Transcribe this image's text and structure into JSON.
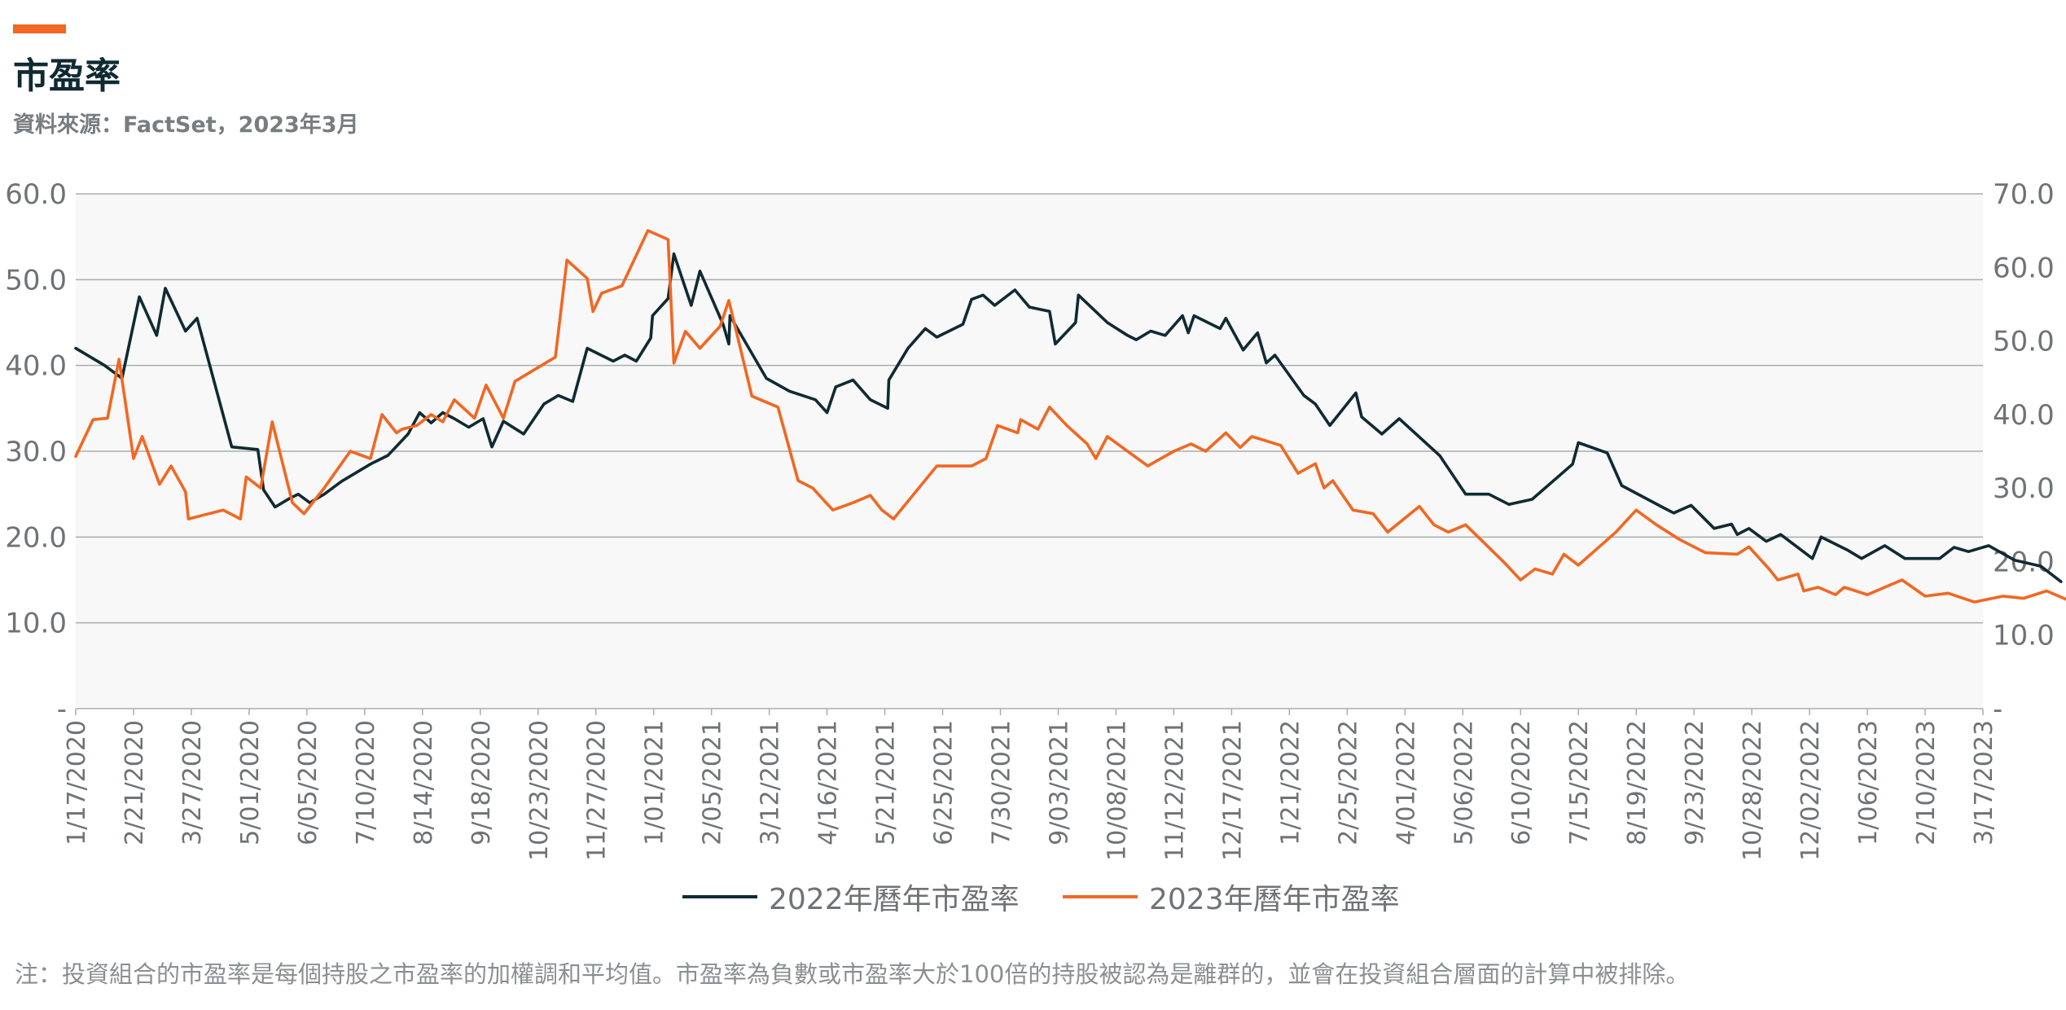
{
  "title": "市盈率",
  "source": "資料來源：FactSet，2023年3月",
  "note": "注：投資組合的市盈率是每個持股之市盈率的加權調和平均值。市盈率為負數或市盈率大於100倍的持股被認為是離群的，並會在投資組合層面的計算中被排除。",
  "colors": {
    "accent": "#f26722",
    "series_2022": "#0f2a33",
    "series_2023": "#f26722",
    "plot_bg": "#f7f8f7",
    "grid": "#a9adaf"
  },
  "chart_data": {
    "type": "line",
    "grid": true,
    "legend_position": "bottom-center",
    "left_axis": {
      "ylim": [
        0,
        60
      ],
      "ticks": [
        {
          "value": 0,
          "label": "-"
        },
        {
          "value": 10,
          "label": "10.0"
        },
        {
          "value": 20,
          "label": "20.0"
        },
        {
          "value": 30,
          "label": "30.0"
        },
        {
          "value": 40,
          "label": "40.0"
        },
        {
          "value": 50,
          "label": "50.0"
        },
        {
          "value": 60,
          "label": "60.0"
        }
      ]
    },
    "right_axis": {
      "ylim": [
        0,
        70
      ],
      "ticks": [
        {
          "value": 0,
          "label": "-"
        },
        {
          "value": 10,
          "label": "10.0"
        },
        {
          "value": 20,
          "label": "20.0"
        },
        {
          "value": 30,
          "label": "30.0"
        },
        {
          "value": 40,
          "label": "40.0"
        },
        {
          "value": 50,
          "label": "50.0"
        },
        {
          "value": 60,
          "label": "60.0"
        },
        {
          "value": 70,
          "label": "70.0"
        }
      ]
    },
    "x_tick_labels": [
      "1/17/2020",
      "2/21/2020",
      "3/27/2020",
      "5/01/2020",
      "6/05/2020",
      "7/10/2020",
      "8/14/2020",
      "9/18/2020",
      "10/23/2020",
      "11/27/2020",
      "1/01/2021",
      "2/05/2021",
      "3/12/2021",
      "4/16/2021",
      "5/21/2021",
      "6/25/2021",
      "7/30/2021",
      "9/03/2021",
      "10/08/2021",
      "11/12/2021",
      "12/17/2021",
      "1/21/2022",
      "2/25/2022",
      "4/01/2022",
      "5/06/2022",
      "6/10/2022",
      "7/15/2022",
      "8/19/2022",
      "9/23/2022",
      "10/28/2022",
      "12/02/2022",
      "1/06/2023",
      "2/10/2023",
      "3/17/2023"
    ],
    "series": [
      {
        "name": "2022年曆年市盈率",
        "axis": "left",
        "points": [
          [
            0,
            42
          ],
          [
            0.5,
            40
          ],
          [
            0.8,
            38.5
          ],
          [
            1.1,
            48
          ],
          [
            1.4,
            43.5
          ],
          [
            1.55,
            49
          ],
          [
            1.9,
            44
          ],
          [
            2.1,
            45.5
          ],
          [
            2.4,
            38
          ],
          [
            2.7,
            30.5
          ],
          [
            3.15,
            30.2
          ],
          [
            3.25,
            25.5
          ],
          [
            3.45,
            23.5
          ],
          [
            3.7,
            24.5
          ],
          [
            3.85,
            25
          ],
          [
            4.05,
            24
          ],
          [
            4.3,
            25
          ],
          [
            4.6,
            26.5
          ],
          [
            5.1,
            28.5
          ],
          [
            5.4,
            29.5
          ],
          [
            5.75,
            32
          ],
          [
            5.95,
            34.5
          ],
          [
            6.15,
            33.3
          ],
          [
            6.35,
            34.5
          ],
          [
            6.55,
            33.8
          ],
          [
            6.8,
            32.8
          ],
          [
            7.05,
            33.8
          ],
          [
            7.2,
            30.5
          ],
          [
            7.4,
            33.5
          ],
          [
            7.75,
            32
          ],
          [
            8.1,
            35.5
          ],
          [
            8.35,
            36.5
          ],
          [
            8.6,
            35.8
          ],
          [
            8.85,
            42
          ],
          [
            9.3,
            40.5
          ],
          [
            9.5,
            41.2
          ],
          [
            9.7,
            40.5
          ],
          [
            9.95,
            43.2
          ],
          [
            9.98,
            45.8
          ],
          [
            10.25,
            47.8
          ],
          [
            10.35,
            53
          ],
          [
            10.65,
            47
          ],
          [
            10.8,
            51
          ],
          [
            11.2,
            44.8
          ],
          [
            11.3,
            42.5
          ],
          [
            11.32,
            45.8
          ],
          [
            11.95,
            38.5
          ],
          [
            12.35,
            37
          ],
          [
            12.8,
            36
          ],
          [
            13.0,
            34.5
          ],
          [
            13.15,
            37.5
          ],
          [
            13.45,
            38.3
          ],
          [
            13.75,
            36
          ],
          [
            14.05,
            35
          ],
          [
            14.07,
            38.3
          ],
          [
            14.4,
            42
          ],
          [
            14.7,
            44.3
          ],
          [
            14.9,
            43.3
          ],
          [
            15.35,
            44.8
          ],
          [
            15.5,
            47.7
          ],
          [
            15.7,
            48.2
          ],
          [
            15.9,
            47
          ],
          [
            16.25,
            48.8
          ],
          [
            16.5,
            46.8
          ],
          [
            16.85,
            46.3
          ],
          [
            16.95,
            42.5
          ],
          [
            17.3,
            45
          ],
          [
            17.35,
            48.2
          ],
          [
            17.85,
            45
          ],
          [
            18.2,
            43.5
          ],
          [
            18.35,
            43
          ],
          [
            18.6,
            44
          ],
          [
            18.85,
            43.5
          ],
          [
            19.15,
            45.8
          ],
          [
            19.25,
            43.8
          ],
          [
            19.35,
            45.8
          ],
          [
            19.8,
            44.3
          ],
          [
            19.9,
            45.5
          ],
          [
            20.2,
            41.8
          ],
          [
            20.45,
            43.8
          ],
          [
            20.6,
            40.3
          ],
          [
            20.75,
            41.2
          ],
          [
            21.25,
            36.5
          ],
          [
            21.45,
            35.5
          ],
          [
            21.7,
            33
          ],
          [
            22.15,
            36.8
          ],
          [
            22.25,
            34
          ],
          [
            22.6,
            32
          ],
          [
            22.9,
            33.8
          ],
          [
            23.6,
            29.5
          ],
          [
            24.05,
            25
          ],
          [
            24.45,
            25
          ],
          [
            24.8,
            23.8
          ],
          [
            25.2,
            24.4
          ],
          [
            25.9,
            28.5
          ],
          [
            26.0,
            31
          ],
          [
            26.5,
            29.8
          ],
          [
            26.75,
            26
          ],
          [
            27.45,
            23.5
          ],
          [
            27.65,
            22.8
          ],
          [
            27.95,
            23.7
          ],
          [
            28.35,
            21
          ],
          [
            28.65,
            21.5
          ],
          [
            28.75,
            20.3
          ],
          [
            28.95,
            21
          ],
          [
            29.25,
            19.5
          ],
          [
            29.5,
            20.3
          ],
          [
            30.05,
            17.5
          ],
          [
            30.2,
            20
          ],
          [
            30.65,
            18.5
          ],
          [
            30.9,
            17.5
          ],
          [
            31.3,
            19
          ],
          [
            31.65,
            17.5
          ],
          [
            32.25,
            17.5
          ],
          [
            32.5,
            18.8
          ],
          [
            32.75,
            18.3
          ],
          [
            33.1,
            19
          ],
          [
            33.55,
            17.3
          ],
          [
            34.0,
            16.6
          ],
          [
            34.35,
            14.8
          ]
        ]
      },
      {
        "name": "2023年曆年市盈率",
        "axis": "right",
        "points": [
          [
            0,
            34.3
          ],
          [
            0.3,
            39.3
          ],
          [
            0.55,
            39.5
          ],
          [
            0.75,
            47.5
          ],
          [
            1.0,
            34
          ],
          [
            1.15,
            37
          ],
          [
            1.45,
            30.5
          ],
          [
            1.65,
            33
          ],
          [
            1.9,
            29.5
          ],
          [
            1.95,
            25.8
          ],
          [
            2.55,
            27
          ],
          [
            2.85,
            25.8
          ],
          [
            2.95,
            31.5
          ],
          [
            3.2,
            30
          ],
          [
            3.4,
            39
          ],
          [
            3.75,
            28
          ],
          [
            3.95,
            26.5
          ],
          [
            4.3,
            30
          ],
          [
            4.75,
            35
          ],
          [
            5.1,
            34
          ],
          [
            5.3,
            40
          ],
          [
            5.55,
            37.5
          ],
          [
            5.65,
            38
          ],
          [
            5.9,
            38.5
          ],
          [
            6.15,
            40
          ],
          [
            6.35,
            39
          ],
          [
            6.55,
            42
          ],
          [
            6.9,
            39.5
          ],
          [
            7.1,
            44
          ],
          [
            7.4,
            39.5
          ],
          [
            7.6,
            44.5
          ],
          [
            8.3,
            47.8
          ],
          [
            8.5,
            61
          ],
          [
            8.85,
            58.5
          ],
          [
            8.95,
            54
          ],
          [
            9.1,
            56.5
          ],
          [
            9.45,
            57.5
          ],
          [
            9.9,
            65
          ],
          [
            10.25,
            63.8
          ],
          [
            10.35,
            47
          ],
          [
            10.55,
            51.3
          ],
          [
            10.8,
            49
          ],
          [
            11.15,
            52
          ],
          [
            11.3,
            55.5
          ],
          [
            11.7,
            42.5
          ],
          [
            12.15,
            41
          ],
          [
            12.5,
            31
          ],
          [
            12.75,
            30
          ],
          [
            13.1,
            27
          ],
          [
            13.45,
            28
          ],
          [
            13.75,
            29
          ],
          [
            13.95,
            27
          ],
          [
            14.15,
            25.8
          ],
          [
            14.9,
            33
          ],
          [
            15.5,
            33
          ],
          [
            15.75,
            34
          ],
          [
            15.95,
            38.5
          ],
          [
            16.3,
            37.5
          ],
          [
            16.35,
            39.3
          ],
          [
            16.65,
            38
          ],
          [
            16.85,
            41
          ],
          [
            17.15,
            38.5
          ],
          [
            17.5,
            36
          ],
          [
            17.65,
            34
          ],
          [
            17.85,
            37
          ],
          [
            18.55,
            33
          ],
          [
            19.0,
            35
          ],
          [
            19.3,
            36
          ],
          [
            19.55,
            35
          ],
          [
            19.9,
            37.5
          ],
          [
            20.15,
            35.5
          ],
          [
            20.35,
            37
          ],
          [
            20.85,
            35.8
          ],
          [
            21.15,
            32
          ],
          [
            21.45,
            33.3
          ],
          [
            21.6,
            30
          ],
          [
            21.75,
            31
          ],
          [
            22.1,
            27
          ],
          [
            22.45,
            26.5
          ],
          [
            22.7,
            24
          ],
          [
            23.25,
            27.5
          ],
          [
            23.5,
            25
          ],
          [
            23.75,
            24
          ],
          [
            24.05,
            25
          ],
          [
            24.7,
            20
          ],
          [
            25.0,
            17.5
          ],
          [
            25.25,
            19
          ],
          [
            25.55,
            18.3
          ],
          [
            25.75,
            21
          ],
          [
            26.0,
            19.5
          ],
          [
            26.65,
            24
          ],
          [
            27.0,
            27
          ],
          [
            27.35,
            25
          ],
          [
            27.75,
            23
          ],
          [
            28.2,
            21.2
          ],
          [
            28.75,
            21
          ],
          [
            28.95,
            22
          ],
          [
            29.3,
            19
          ],
          [
            29.45,
            17.5
          ],
          [
            29.8,
            18.3
          ],
          [
            29.9,
            16
          ],
          [
            30.15,
            16.5
          ],
          [
            30.45,
            15.5
          ],
          [
            30.6,
            16.5
          ],
          [
            31.0,
            15.5
          ],
          [
            31.6,
            17.5
          ],
          [
            32.0,
            15.3
          ],
          [
            32.4,
            15.7
          ],
          [
            32.85,
            14.5
          ],
          [
            33.35,
            15.3
          ],
          [
            33.7,
            15
          ],
          [
            34.1,
            16
          ],
          [
            34.55,
            14.5
          ],
          [
            34.85,
            14
          ],
          [
            35.25,
            13
          ]
        ]
      }
    ]
  }
}
